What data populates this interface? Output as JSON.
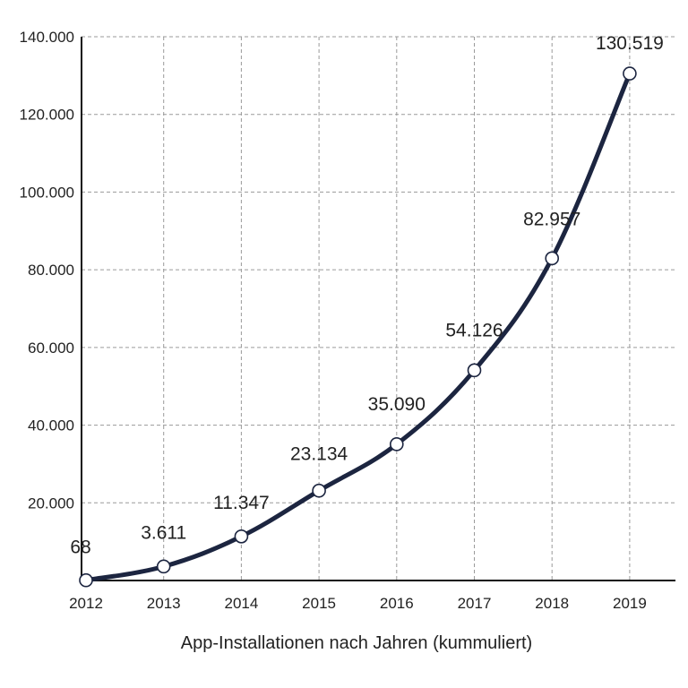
{
  "chart_data": {
    "type": "line",
    "title": "",
    "xlabel": "App-Installationen nach Jahren (kummuliert)",
    "ylabel": "",
    "categories": [
      "2012",
      "2013",
      "2014",
      "2015",
      "2016",
      "2017",
      "2018",
      "2019"
    ],
    "series": [
      {
        "values": [
          68,
          3611,
          11347,
          23134,
          35090,
          54126,
          82957,
          130519
        ],
        "value_labels": [
          "68",
          "3.611",
          "11.347",
          "23.134",
          "35.090",
          "54.126",
          "82.957",
          "130.519"
        ]
      }
    ],
    "ylim": [
      0,
      140000
    ],
    "yticks": [
      20000,
      40000,
      60000,
      80000,
      100000,
      120000,
      140000
    ],
    "ytick_labels": [
      "20.000",
      "40.000",
      "60.000",
      "80.000",
      "100.000",
      "120.000",
      "140.000"
    ],
    "grid": true,
    "legend": "none",
    "line_color": "#1c2540",
    "marker_fill": "#ffffff"
  }
}
